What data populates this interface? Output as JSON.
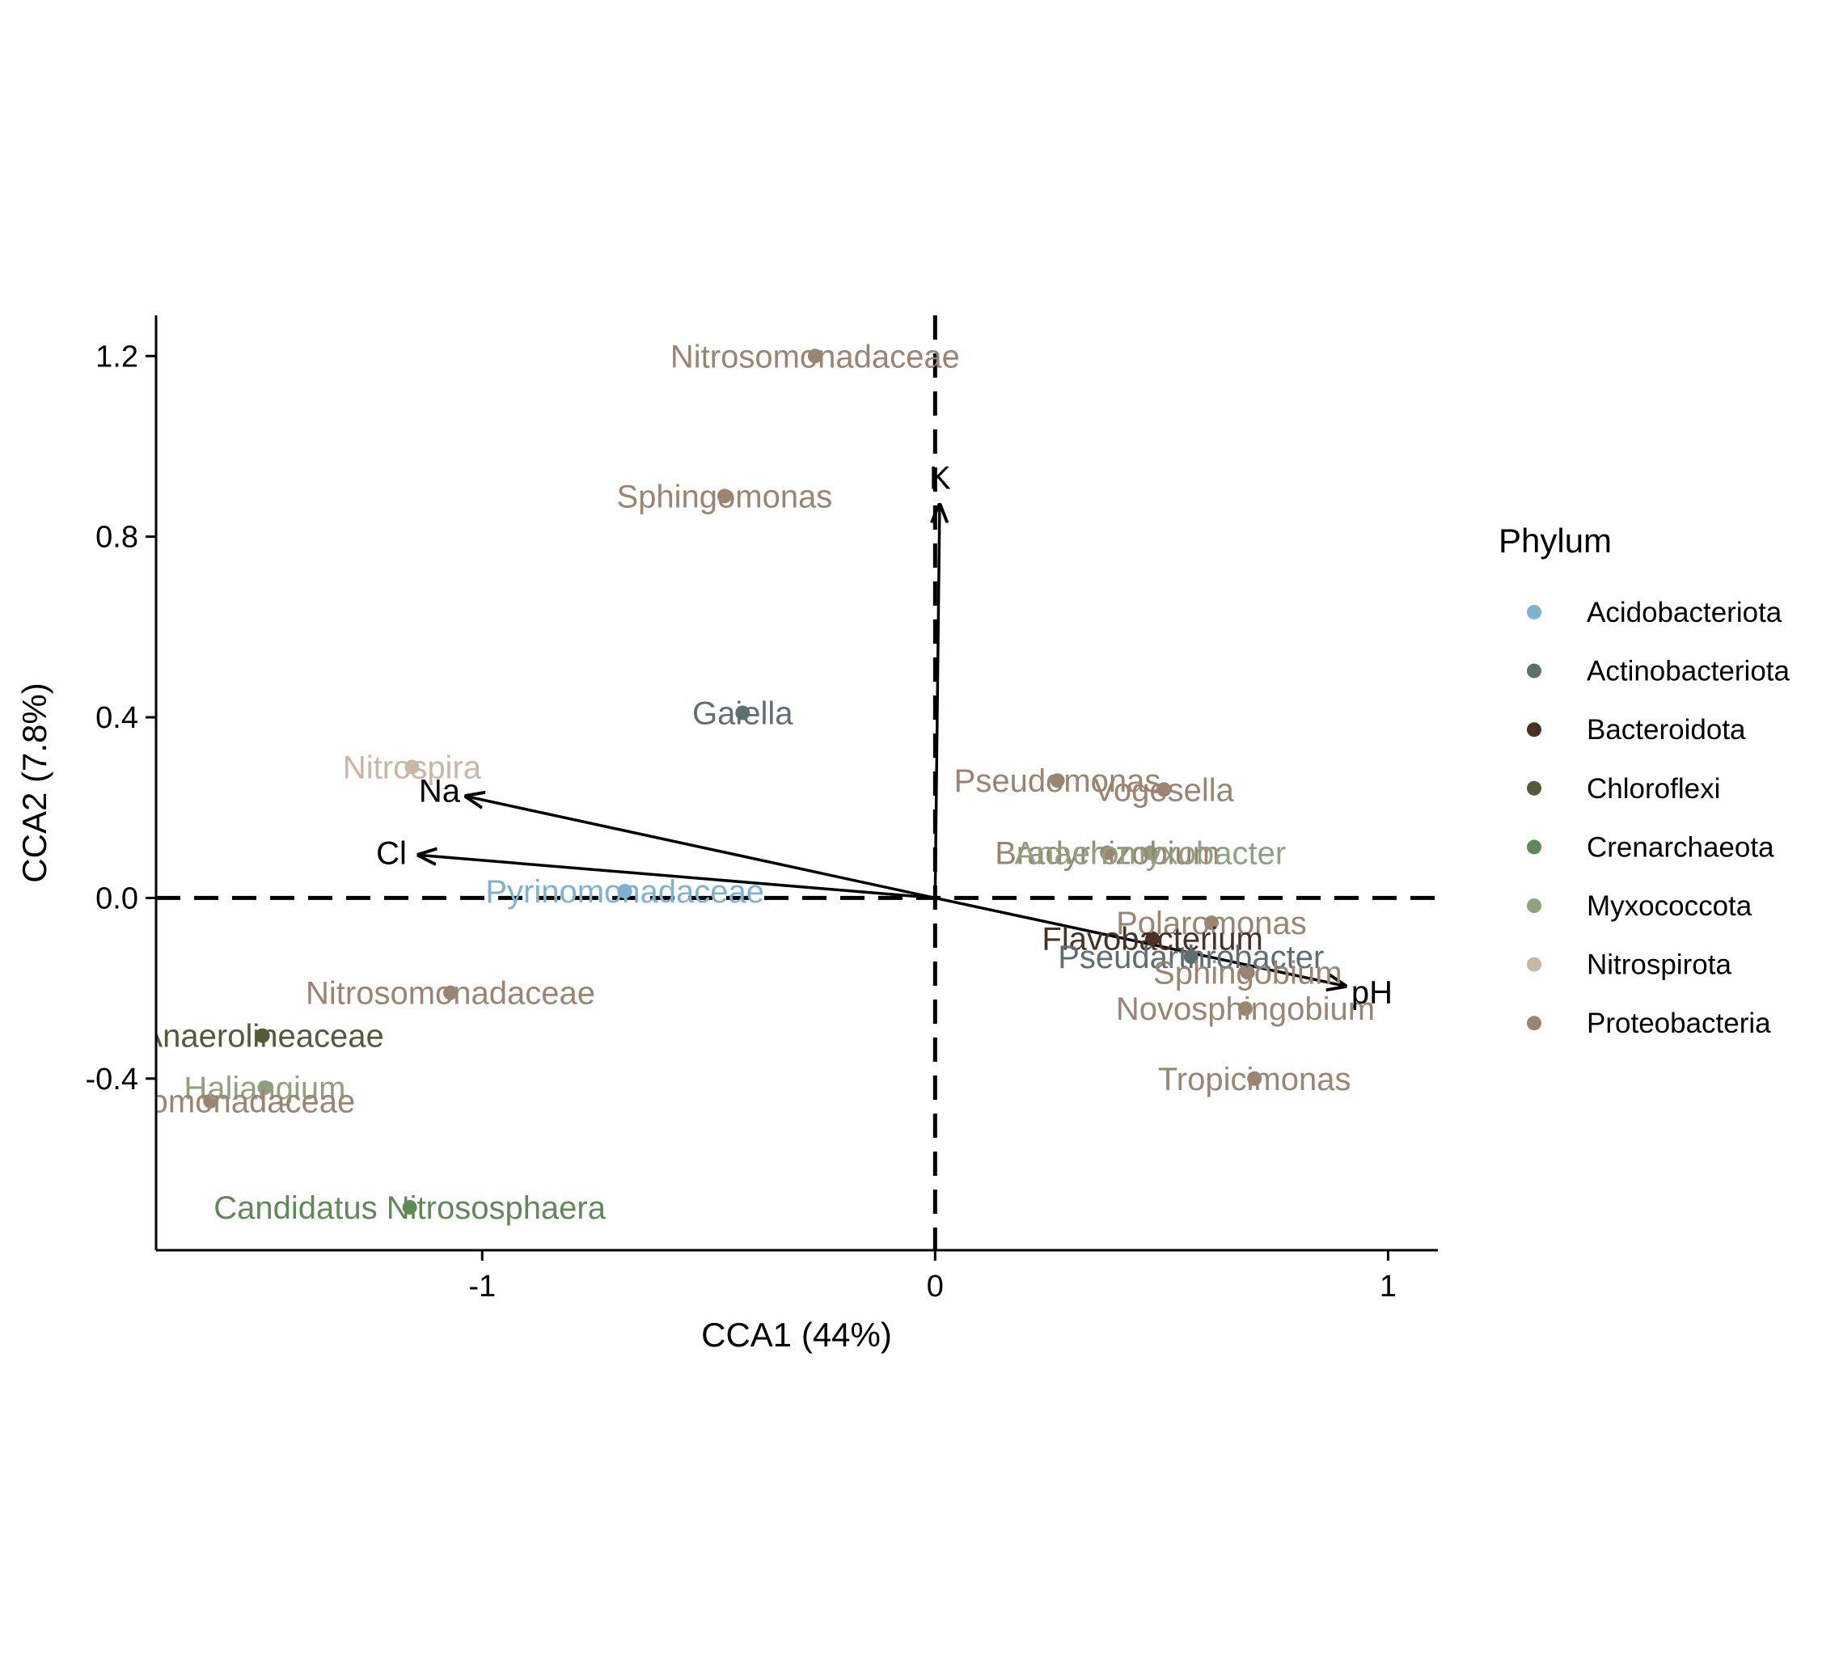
{
  "chart_data": {
    "type": "scatter",
    "title": "",
    "xlabel": "CCA1 (44%)",
    "ylabel": "CCA2 (7.8%)",
    "xlim": [
      -1.72,
      1.11
    ],
    "ylim": [
      -0.78,
      1.29
    ],
    "xticks": [
      -1,
      0,
      1
    ],
    "xtick_labels": [
      "-1",
      "0",
      "1"
    ],
    "yticks": [
      -0.4,
      0.0,
      0.4,
      0.8,
      1.2
    ],
    "ytick_labels": [
      "-0.4",
      "0.0",
      "0.4",
      "0.8",
      "1.2"
    ],
    "grid": false,
    "reference_lines": {
      "x": 0,
      "y": 0,
      "style": "dashed"
    },
    "legend": {
      "title": "Phylum",
      "position": "right",
      "entries": [
        {
          "name": "Acidobacteriota",
          "color": "#7bb3d1"
        },
        {
          "name": "Actinobacteriota",
          "color": "#5e6f72"
        },
        {
          "name": "Bacteroidota",
          "color": "#4a3121"
        },
        {
          "name": "Chloroflexi",
          "color": "#505c3a"
        },
        {
          "name": "Crenarchaeota",
          "color": "#5e8a58"
        },
        {
          "name": "Myxococcota",
          "color": "#8ea27e"
        },
        {
          "name": "Nitrospirota",
          "color": "#c7b7a3"
        },
        {
          "name": "Proteobacteria",
          "color": "#9b8470"
        }
      ]
    },
    "points": [
      {
        "label": "Nitrosomonadaceae",
        "phylum": "Proteobacteria",
        "x": -0.265,
        "y": 1.2
      },
      {
        "label": "Sphingomonas",
        "phylum": "Proteobacteria",
        "x": -0.465,
        "y": 0.89
      },
      {
        "label": "Gaiella",
        "phylum": "Actinobacteriota",
        "x": -0.425,
        "y": 0.41
      },
      {
        "label": "Nitrospira",
        "phylum": "Nitrospirota",
        "x": -1.155,
        "y": 0.29
      },
      {
        "label": "Pyrinomonadaceae",
        "phylum": "Acidobacteriota",
        "x": -0.685,
        "y": 0.015
      },
      {
        "label": "Nitrosomonadaceae",
        "phylum": "Proteobacteria",
        "x": -1.07,
        "y": -0.21
      },
      {
        "label": "Anaerolineaceae",
        "phylum": "Chloroflexi",
        "x": -1.485,
        "y": -0.305
      },
      {
        "label": "Haliangium",
        "phylum": "Myxococcota",
        "x": -1.48,
        "y": -0.42
      },
      {
        "label": "Nitrosomonadaceae",
        "phylum": "Proteobacteria",
        "x": -1.6,
        "y": -0.45
      },
      {
        "label": "Candidatus Nitrososphaera",
        "phylum": "Crenarchaeota",
        "x": -1.16,
        "y": -0.685
      },
      {
        "label": "Pseudomonas",
        "phylum": "Proteobacteria",
        "x": 0.27,
        "y": 0.26
      },
      {
        "label": "Vogesella",
        "phylum": "Proteobacteria",
        "x": 0.505,
        "y": 0.24
      },
      {
        "label": "Bradyrhizobium",
        "phylum": "Proteobacteria",
        "x": 0.38,
        "y": 0.1
      },
      {
        "label": "Anaeromyxobacter",
        "phylum": "Myxococcota",
        "x": 0.475,
        "y": 0.1
      },
      {
        "label": "Polaromonas",
        "phylum": "Proteobacteria",
        "x": 0.61,
        "y": -0.055
      },
      {
        "label": "Flavobacterium",
        "phylum": "Bacteroidota",
        "x": 0.48,
        "y": -0.09
      },
      {
        "label": "Pseudarthrobacter",
        "phylum": "Actinobacteriota",
        "x": 0.565,
        "y": -0.13
      },
      {
        "label": "Sphingobium",
        "phylum": "Proteobacteria",
        "x": 0.69,
        "y": -0.165
      },
      {
        "label": "Novosphingobium",
        "phylum": "Proteobacteria",
        "x": 0.685,
        "y": -0.245
      },
      {
        "label": "Tropicimonas",
        "phylum": "Proteobacteria",
        "x": 0.705,
        "y": -0.4
      }
    ],
    "arrows": [
      {
        "label": "K",
        "x": 0.01,
        "y": 0.87
      },
      {
        "label": "Na",
        "x": -1.035,
        "y": 0.225
      },
      {
        "label": "Cl",
        "x": -1.14,
        "y": 0.095
      },
      {
        "label": "pH",
        "x": 0.905,
        "y": -0.195
      }
    ]
  }
}
